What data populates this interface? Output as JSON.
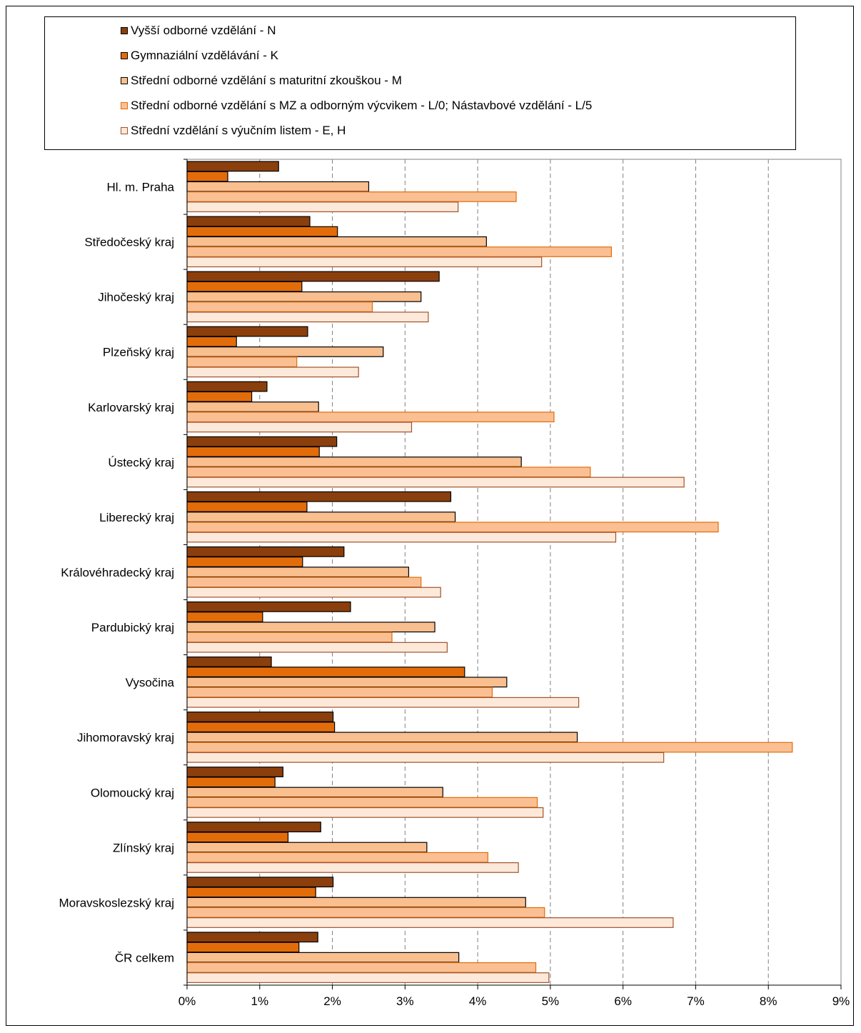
{
  "chart_data": {
    "type": "bar",
    "orientation": "horizontal",
    "categories": [
      "Hl. m. Praha",
      "Středočeský kraj",
      "Jihočeský kraj",
      "Plzeňský kraj",
      "Karlovarský kraj",
      "Ústecký kraj",
      "Liberecký kraj",
      "Královéhradecký kraj",
      "Pardubický kraj",
      "Vysočina",
      "Jihomoravský kraj",
      "Olomoucký kraj",
      "Zlínský kraj",
      "Moravskoslezský kraj",
      "ČR celkem"
    ],
    "series": [
      {
        "name": "Vyšší odborné vzdělání - N",
        "color": "#8B3F0D",
        "border": "#000000",
        "values": [
          1.26,
          1.69,
          3.47,
          1.66,
          1.1,
          2.06,
          3.63,
          2.16,
          2.25,
          1.16,
          2.01,
          1.32,
          1.84,
          2.01,
          1.8
        ]
      },
      {
        "name": "Gymnaziální vzdělávání - K",
        "color": "#E36C0A",
        "border": "#000000",
        "values": [
          0.56,
          2.07,
          1.58,
          0.68,
          0.89,
          1.82,
          1.65,
          1.59,
          1.04,
          3.82,
          2.03,
          1.21,
          1.39,
          1.77,
          1.54
        ]
      },
      {
        "name": "Střední odborné vzdělání s maturitní zkouškou - M",
        "color": "#F9BF8F",
        "border": "#000000",
        "values": [
          2.5,
          4.12,
          3.22,
          2.7,
          1.81,
          4.6,
          3.69,
          3.05,
          3.41,
          4.4,
          5.37,
          3.52,
          3.3,
          4.66,
          3.74
        ]
      },
      {
        "name": "Střední odborné vzdělání s MZ a odborným výcvikem - L/0; Nástavbové vzdělání - L/5",
        "color": "#FAC093",
        "border": "#E36C0A",
        "values": [
          4.53,
          5.84,
          2.55,
          1.51,
          5.05,
          5.55,
          7.31,
          3.22,
          2.82,
          4.2,
          8.33,
          4.82,
          4.14,
          4.92,
          4.8
        ]
      },
      {
        "name": "Střední vzdělání s výučním listem - E, H",
        "color": "#FDE9D9",
        "border": "#A0522D",
        "values": [
          3.73,
          4.88,
          3.32,
          2.36,
          3.09,
          6.84,
          5.9,
          3.49,
          3.58,
          5.39,
          6.56,
          4.9,
          4.56,
          6.69,
          4.98
        ]
      }
    ],
    "xlim": [
      0,
      9
    ],
    "x_ticks": [
      "0%",
      "1%",
      "2%",
      "3%",
      "4%",
      "5%",
      "6%",
      "7%",
      "8%",
      "9%"
    ],
    "grid": "vertical dashed",
    "legend_position": "top"
  }
}
